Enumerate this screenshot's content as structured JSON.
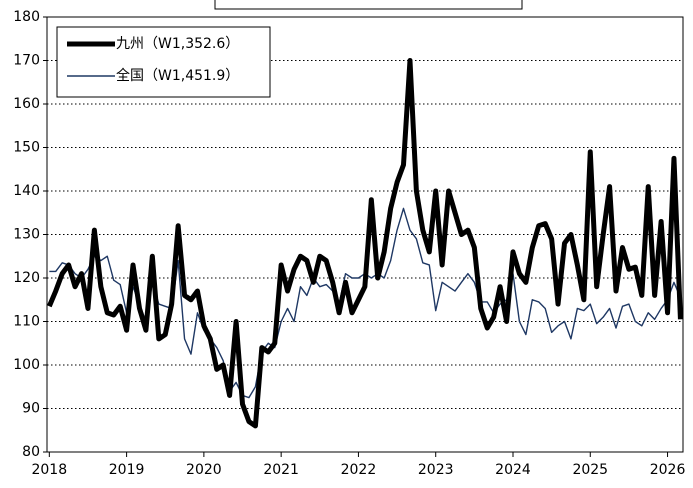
{
  "chart_data": {
    "type": "line",
    "x": [
      2018,
      2018.083,
      2018.167,
      2018.25,
      2018.333,
      2018.417,
      2018.5,
      2018.583,
      2018.667,
      2018.75,
      2018.833,
      2018.917,
      2019,
      2019.083,
      2019.167,
      2019.25,
      2019.333,
      2019.417,
      2019.5,
      2019.583,
      2019.667,
      2019.75,
      2019.833,
      2019.917,
      2020,
      2020.083,
      2020.167,
      2020.25,
      2020.333,
      2020.417,
      2020.5,
      2020.583,
      2020.667,
      2020.75,
      2020.833,
      2020.917,
      2021,
      2021.083,
      2021.167,
      2021.25,
      2021.333,
      2021.417,
      2021.5,
      2021.583,
      2021.667,
      2021.75,
      2021.833,
      2021.917,
      2022,
      2022.083,
      2022.167,
      2022.25,
      2022.333,
      2022.417,
      2022.5,
      2022.583,
      2022.667,
      2022.75,
      2022.833,
      2022.917,
      2023,
      2023.083,
      2023.167,
      2023.25,
      2023.333,
      2023.417,
      2023.5,
      2023.583,
      2023.667,
      2023.75,
      2023.833,
      2023.917,
      2024,
      2024.083,
      2024.167,
      2024.25,
      2024.333,
      2024.417,
      2024.5,
      2024.583,
      2024.667,
      2024.75,
      2024.833,
      2024.917,
      2025,
      2025.083,
      2025.167,
      2025.25,
      2025.333,
      2025.417,
      2025.5,
      2025.583,
      2025.667,
      2025.75,
      2025.833,
      2025.917,
      2026,
      2026.083,
      2026.167
    ],
    "series": [
      {
        "name": "九州（W1,352.6）",
        "color": "#000000",
        "values": [
          113.5,
          117,
          121,
          123,
          118,
          121,
          113,
          131,
          118,
          112,
          111.5,
          113.5,
          108,
          123,
          113,
          108,
          125,
          106,
          107,
          114,
          132,
          116,
          115,
          117,
          109,
          106,
          99,
          100,
          93,
          110,
          91,
          87,
          86,
          104,
          103,
          105,
          123,
          117,
          122,
          125,
          124,
          119,
          125,
          124,
          119,
          112,
          119,
          112,
          115,
          118,
          138,
          120,
          126,
          136,
          142,
          146,
          170,
          140,
          131,
          126,
          140,
          123,
          140,
          135,
          130,
          131,
          127,
          113,
          108.5,
          111,
          118,
          110,
          126,
          121,
          119,
          127,
          132,
          132.5,
          129,
          114,
          128,
          130,
          123,
          115,
          149,
          118,
          130,
          141,
          117,
          127,
          122,
          122.5,
          116,
          141,
          116,
          133,
          112,
          147.5,
          110.5
        ]
      },
      {
        "name": "全国（W1,451.9）",
        "color": "#1f3864",
        "values": [
          121.5,
          121.5,
          123.5,
          123,
          121,
          120,
          122,
          125,
          124,
          125,
          119.5,
          118.5,
          112,
          118,
          114,
          110,
          119,
          114,
          113.5,
          113,
          124,
          106,
          102.5,
          112,
          108,
          106,
          104,
          101,
          94,
          96,
          93,
          92.5,
          95,
          103,
          105,
          104,
          110,
          113,
          110,
          118,
          116,
          120,
          118,
          118.5,
          117,
          114,
          121,
          120,
          120,
          121,
          120,
          121,
          120,
          124,
          131,
          136,
          131,
          129,
          123.5,
          123,
          112.5,
          119,
          118,
          117,
          119,
          121,
          119,
          114.5,
          114.5,
          112,
          114,
          115,
          121,
          110,
          107,
          115,
          114.5,
          113,
          107.5,
          109,
          110,
          106,
          113,
          112.5,
          114,
          109.5,
          111,
          113,
          108.5,
          113.5,
          114,
          110,
          109,
          112,
          110.5,
          113,
          115,
          119,
          115.5
        ]
      }
    ],
    "xlim": [
      2017.97,
      2026.2
    ],
    "xticks": [
      2018,
      2019,
      2020,
      2021,
      2022,
      2023,
      2024,
      2025,
      2026
    ],
    "ylim": [
      80,
      180
    ],
    "yticks": [
      80,
      90,
      100,
      110,
      120,
      130,
      140,
      150,
      160,
      170,
      180
    ],
    "grid": true
  }
}
